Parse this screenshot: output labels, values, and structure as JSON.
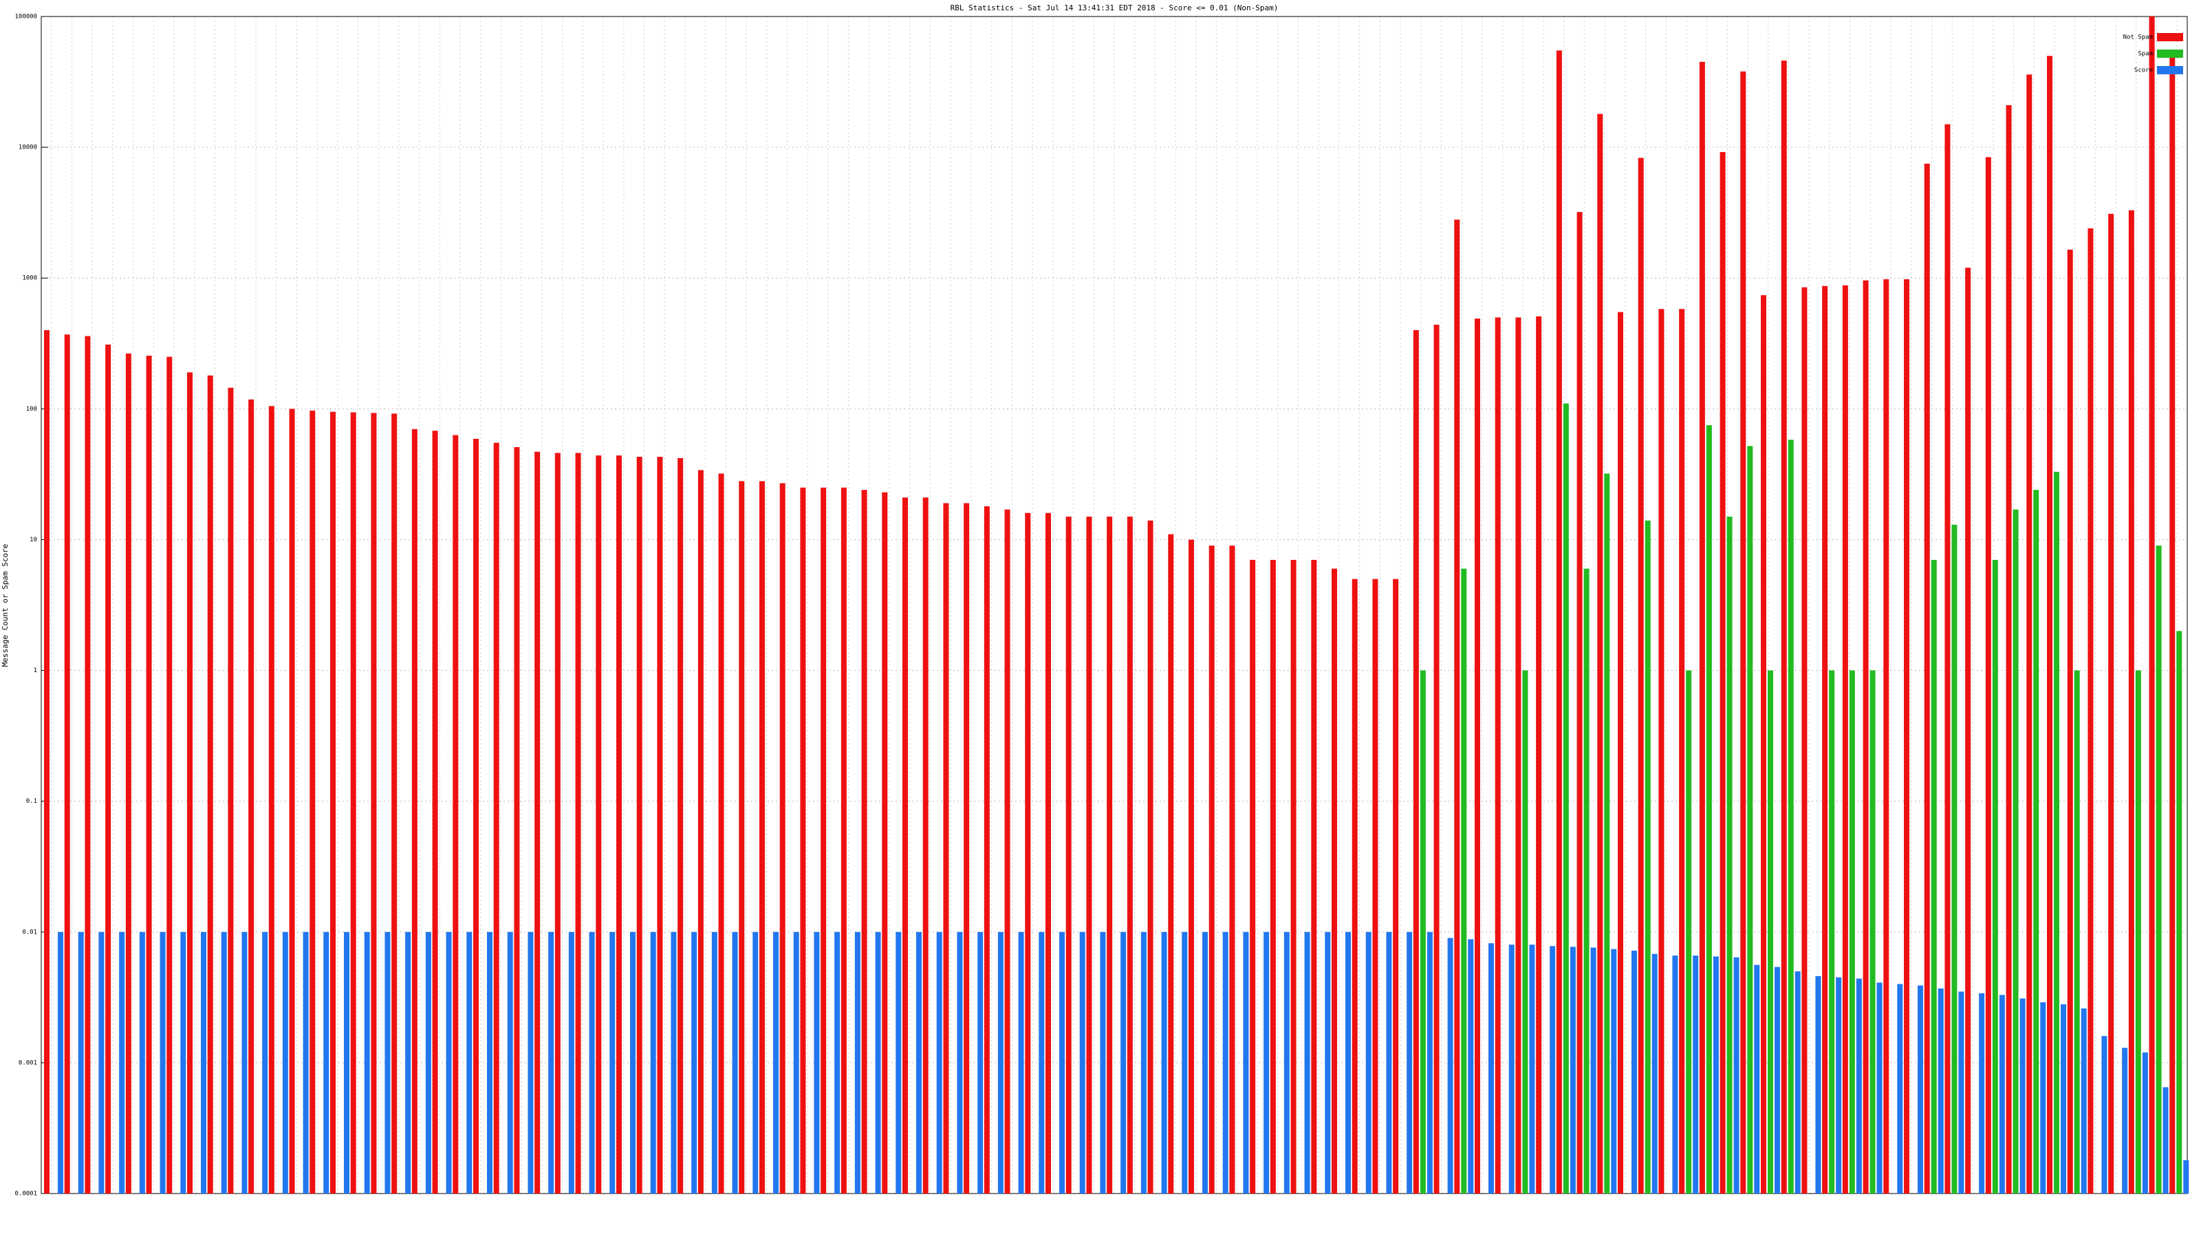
{
  "chart_data": {
    "type": "bar",
    "title": "RBL Statistics - Sat Jul 14 13:41:31 EDT 2018 - Score <= 0.01 (Non-Spam)",
    "ylabel": "Message Count or Spam Score",
    "log_scale": true,
    "grid": true,
    "legend": "top-right",
    "ylim": [
      0.0001,
      100000
    ],
    "yticks": [
      0.0001,
      0.001,
      0.01,
      0.1,
      1,
      10,
      100,
      1000,
      10000,
      100000
    ],
    "categories": [
      null,
      null,
      null,
      null,
      null,
      null,
      null,
      null,
      null,
      null,
      null,
      null,
      null,
      null,
      null,
      null,
      null,
      null,
      null,
      null,
      null,
      null,
      null,
      null,
      null,
      null,
      null,
      null,
      null,
      null,
      null,
      null,
      null,
      null,
      null,
      null,
      null,
      null,
      null,
      null,
      null,
      null,
      null,
      null,
      null,
      null,
      null,
      null,
      null,
      null,
      null,
      null,
      null,
      null,
      null,
      null,
      null,
      null,
      null,
      null,
      null,
      null,
      null,
      null,
      null,
      null,
      null,
      null,
      null,
      null,
      null,
      null,
      null,
      null,
      null,
      null,
      null,
      null,
      null,
      null,
      null,
      null,
      null,
      null,
      null,
      null,
      null,
      null,
      null,
      null,
      null,
      null,
      null,
      null,
      null,
      null,
      null,
      null,
      null,
      null,
      null,
      null,
      null,
      null,
      null
    ],
    "series": [
      {
        "name": "Not Spam",
        "color": "#ee1111",
        "values": [
          400,
          370,
          360,
          310,
          265,
          255,
          250,
          190,
          180,
          145,
          118,
          105,
          100,
          97,
          95,
          94,
          93,
          92,
          70,
          68,
          63,
          59,
          55,
          51,
          47,
          46,
          46,
          44,
          44,
          43,
          43,
          42,
          34,
          32,
          28,
          28,
          27,
          25,
          25,
          25,
          24,
          23,
          21,
          21,
          19,
          19,
          18,
          17,
          16,
          16,
          15,
          15,
          15,
          15,
          14,
          11,
          10,
          9,
          9,
          7,
          7,
          7,
          7,
          6,
          5,
          5,
          5,
          400,
          440,
          2800,
          490,
          500,
          500,
          510,
          55000,
          3200,
          18000,
          550,
          8300,
          580,
          580,
          45000,
          9200,
          38000,
          740,
          46000,
          850,
          870,
          880,
          960,
          980,
          980,
          7500,
          15000,
          1200,
          8400,
          21000,
          36000,
          50000,
          1650,
          2400,
          3100,
          3300,
          100000,
          55000
        ]
      },
      {
        "name": "Spam",
        "color": "#22bb22",
        "values": [
          null,
          null,
          null,
          null,
          null,
          null,
          null,
          null,
          null,
          null,
          null,
          null,
          null,
          null,
          null,
          null,
          null,
          null,
          null,
          null,
          null,
          null,
          null,
          null,
          null,
          null,
          null,
          null,
          null,
          null,
          null,
          null,
          null,
          null,
          null,
          null,
          null,
          null,
          null,
          null,
          null,
          null,
          null,
          null,
          null,
          null,
          null,
          null,
          null,
          null,
          null,
          null,
          null,
          null,
          null,
          null,
          null,
          null,
          null,
          null,
          null,
          null,
          null,
          null,
          null,
          null,
          null,
          1,
          null,
          6,
          null,
          null,
          1,
          null,
          110,
          6,
          32,
          null,
          14,
          null,
          1,
          75,
          15,
          52,
          1,
          58,
          null,
          1,
          1,
          1,
          null,
          null,
          7,
          13,
          null,
          7,
          17,
          24,
          33,
          1,
          null,
          null,
          1,
          9,
          2
        ]
      },
      {
        "name": "Score",
        "color": "#2277ee",
        "values": [
          0.01,
          0.01,
          0.01,
          0.01,
          0.01,
          0.01,
          0.01,
          0.01,
          0.01,
          0.01,
          0.01,
          0.01,
          0.01,
          0.01,
          0.01,
          0.01,
          0.01,
          0.01,
          0.01,
          0.01,
          0.01,
          0.01,
          0.01,
          0.01,
          0.01,
          0.01,
          0.01,
          0.01,
          0.01,
          0.01,
          0.01,
          0.01,
          0.01,
          0.01,
          0.01,
          0.01,
          0.01,
          0.01,
          0.01,
          0.01,
          0.01,
          0.01,
          0.01,
          0.01,
          0.01,
          0.01,
          0.01,
          0.01,
          0.01,
          0.01,
          0.01,
          0.01,
          0.01,
          0.01,
          0.01,
          0.01,
          0.01,
          0.01,
          0.01,
          0.01,
          0.01,
          0.01,
          0.01,
          0.01,
          0.01,
          0.01,
          0.01,
          0.01,
          0.009,
          0.0088,
          0.0082,
          0.008,
          0.008,
          0.0078,
          0.0077,
          0.0076,
          0.0074,
          0.0072,
          0.0068,
          0.0066,
          0.0066,
          0.0065,
          0.0064,
          0.0056,
          0.0054,
          0.005,
          0.0046,
          0.0045,
          0.0044,
          0.0041,
          0.004,
          0.0039,
          0.0037,
          0.0035,
          0.0034,
          0.0033,
          0.0031,
          0.0029,
          0.0028,
          0.0026,
          0.0016,
          0.0013,
          0.0012,
          0.00065,
          0.00018
        ]
      }
    ]
  }
}
